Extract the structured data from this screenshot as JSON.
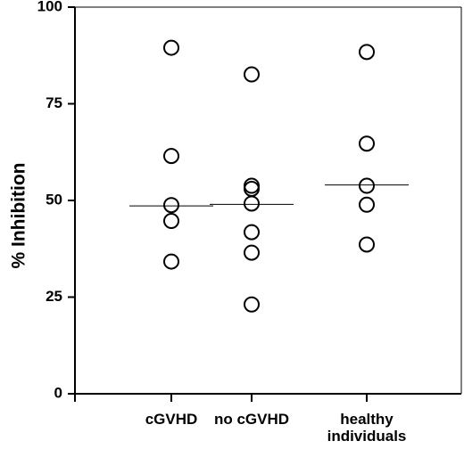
{
  "chart_data": {
    "type": "scatter",
    "title": "",
    "xlabel": "",
    "ylabel": "% Inhibition",
    "ylim": [
      0,
      100
    ],
    "yticks": [
      "0",
      "25",
      "50",
      "75",
      "100"
    ],
    "grid": false,
    "legend": "none",
    "categories": [
      {
        "lines": [
          "cGVHD"
        ]
      },
      {
        "lines": [
          "no cGVHD"
        ]
      },
      {
        "lines": [
          "healthy",
          "individuals"
        ]
      }
    ],
    "groups": [
      {
        "points": [
          89.5,
          61.5,
          48.8,
          44.7,
          34.2
        ],
        "median": 48.6
      },
      {
        "points": [
          82.6,
          53.8,
          53.0,
          49.2,
          41.8,
          36.5,
          23.1
        ],
        "median": 49.0
      },
      {
        "points": [
          88.4,
          64.7,
          53.8,
          48.9,
          38.6
        ],
        "median": 54.0
      }
    ],
    "marker": "open-circle",
    "colors": {
      "marker": "#000000",
      "axis": "#000000"
    }
  }
}
